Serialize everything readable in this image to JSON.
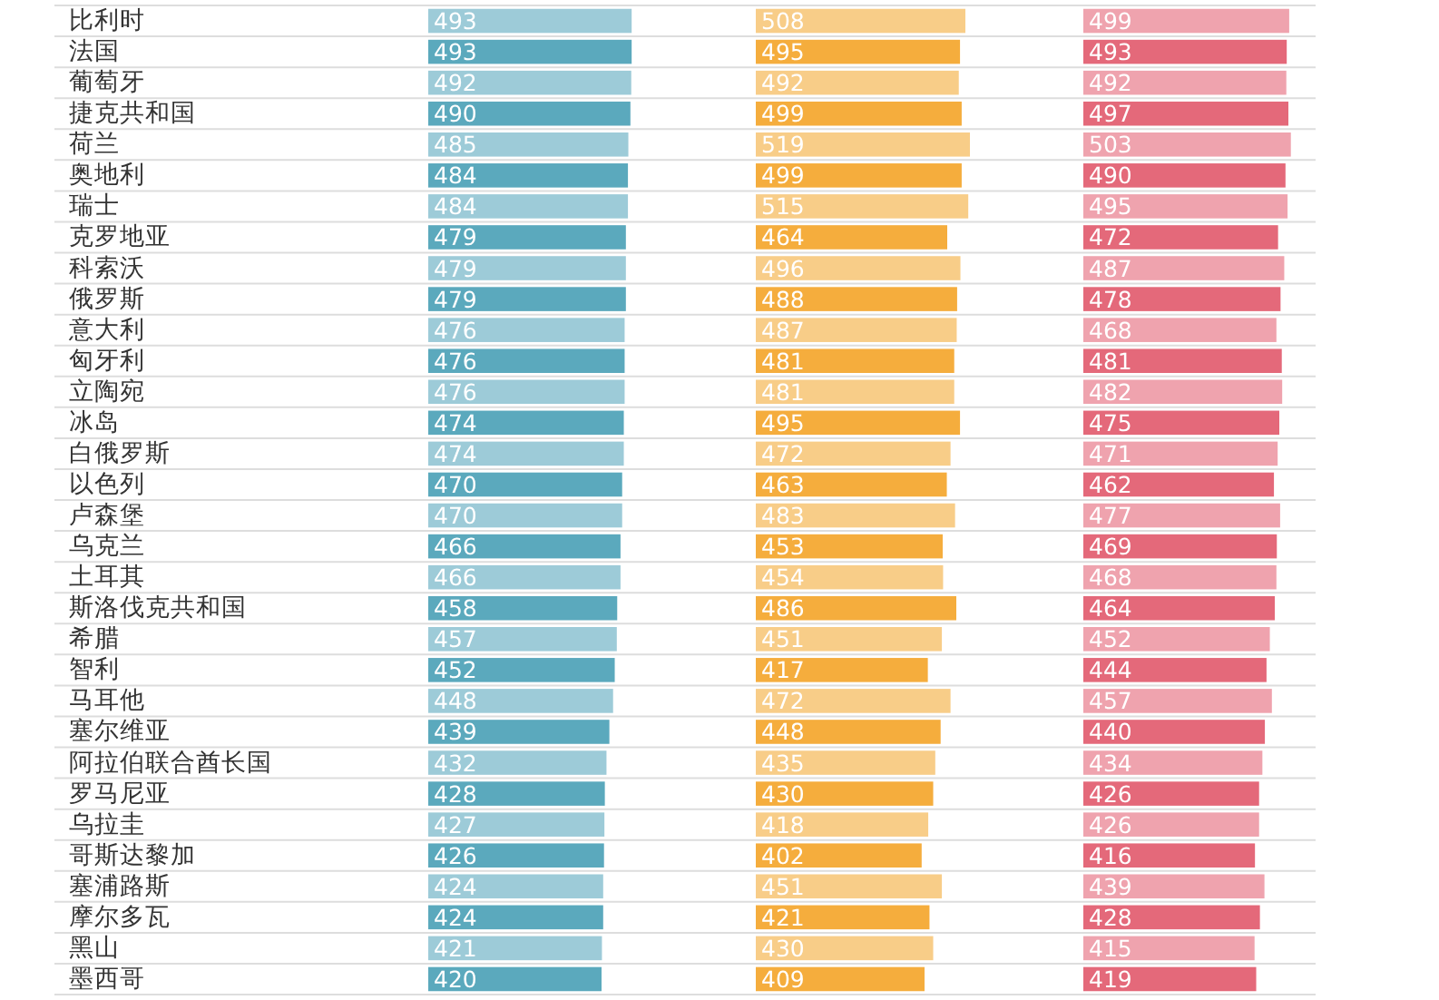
{
  "chart_data": [
    {
      "type": "bar",
      "orientation": "horizontal",
      "categories": [
        "比利时",
        "法国",
        "葡萄牙",
        "捷克共和国",
        "荷兰",
        "奥地利",
        "瑞士",
        "克罗地亚",
        "科索沃",
        "俄罗斯",
        "意大利",
        "匈牙利",
        "立陶宛",
        "冰岛",
        "白俄罗斯",
        "以色列",
        "卢森堡",
        "乌克兰",
        "土耳其",
        "斯洛伐克共和国",
        "希腊",
        "智利",
        "马耳他",
        "塞尔维亚",
        "阿拉伯联合酋长国",
        "罗马尼亚",
        "乌拉圭",
        "哥斯达黎加",
        "塞浦路斯",
        "摩尔多瓦",
        "黑山",
        "墨西哥"
      ],
      "values": [
        493,
        493,
        492,
        490,
        485,
        484,
        484,
        479,
        479,
        479,
        476,
        476,
        476,
        474,
        474,
        470,
        470,
        466,
        466,
        458,
        457,
        452,
        448,
        439,
        432,
        428,
        427,
        426,
        424,
        424,
        421,
        420
      ],
      "colors": [
        "#9dcbd8",
        "#5ba9bd",
        "#9dcbd8",
        "#5ba9bd",
        "#9dcbd8",
        "#5ba9bd",
        "#9dcbd8",
        "#5ba9bd",
        "#9dcbd8",
        "#5ba9bd",
        "#9dcbd8",
        "#5ba9bd",
        "#9dcbd8",
        "#5ba9bd",
        "#9dcbd8",
        "#5ba9bd",
        "#9dcbd8",
        "#5ba9bd",
        "#9dcbd8",
        "#5ba9bd",
        "#9dcbd8",
        "#5ba9bd",
        "#9dcbd8",
        "#5ba9bd",
        "#9dcbd8",
        "#5ba9bd",
        "#9dcbd8",
        "#5ba9bd",
        "#9dcbd8",
        "#5ba9bd",
        "#9dcbd8",
        "#5ba9bd"
      ],
      "data_labels": true,
      "grid": "y",
      "tick_labels": "y"
    },
    {
      "type": "bar",
      "orientation": "horizontal",
      "values": [
        508,
        495,
        492,
        499,
        519,
        499,
        515,
        464,
        496,
        488,
        487,
        481,
        481,
        495,
        472,
        463,
        483,
        453,
        454,
        486,
        451,
        417,
        472,
        448,
        435,
        430,
        418,
        402,
        451,
        421,
        430,
        409
      ],
      "colors": [
        "#f8cd88",
        "#f5ad3d",
        "#f8cd88",
        "#f5ad3d",
        "#f8cd88",
        "#f5ad3d",
        "#f8cd88",
        "#f5ad3d",
        "#f8cd88",
        "#f5ad3d",
        "#f8cd88",
        "#f5ad3d",
        "#f8cd88",
        "#f5ad3d",
        "#f8cd88",
        "#f5ad3d",
        "#f8cd88",
        "#f5ad3d",
        "#f8cd88",
        "#f5ad3d",
        "#f8cd88",
        "#f5ad3d",
        "#f8cd88",
        "#f5ad3d",
        "#f8cd88",
        "#f5ad3d",
        "#f8cd88",
        "#f5ad3d",
        "#f8cd88",
        "#f5ad3d",
        "#f8cd88",
        "#f5ad3d"
      ],
      "data_labels": true,
      "grid": "y"
    },
    {
      "type": "bar",
      "orientation": "horizontal",
      "values": [
        499,
        493,
        492,
        497,
        503,
        490,
        495,
        472,
        487,
        478,
        468,
        481,
        482,
        475,
        471,
        462,
        477,
        469,
        468,
        464,
        452,
        444,
        457,
        440,
        434,
        426,
        426,
        416,
        439,
        428,
        415,
        419
      ],
      "colors": [
        "#efa3ae",
        "#e4697a",
        "#efa3ae",
        "#e4697a",
        "#efa3ae",
        "#e4697a",
        "#efa3ae",
        "#e4697a",
        "#efa3ae",
        "#e4697a",
        "#efa3ae",
        "#e4697a",
        "#efa3ae",
        "#e4697a",
        "#efa3ae",
        "#e4697a",
        "#efa3ae",
        "#e4697a",
        "#efa3ae",
        "#e4697a",
        "#efa3ae",
        "#e4697a",
        "#efa3ae",
        "#e4697a",
        "#efa3ae",
        "#e4697a",
        "#efa3ae",
        "#e4697a",
        "#efa3ae",
        "#e4697a",
        "#efa3ae",
        "#e4697a"
      ],
      "data_labels": true,
      "grid": "y"
    }
  ]
}
